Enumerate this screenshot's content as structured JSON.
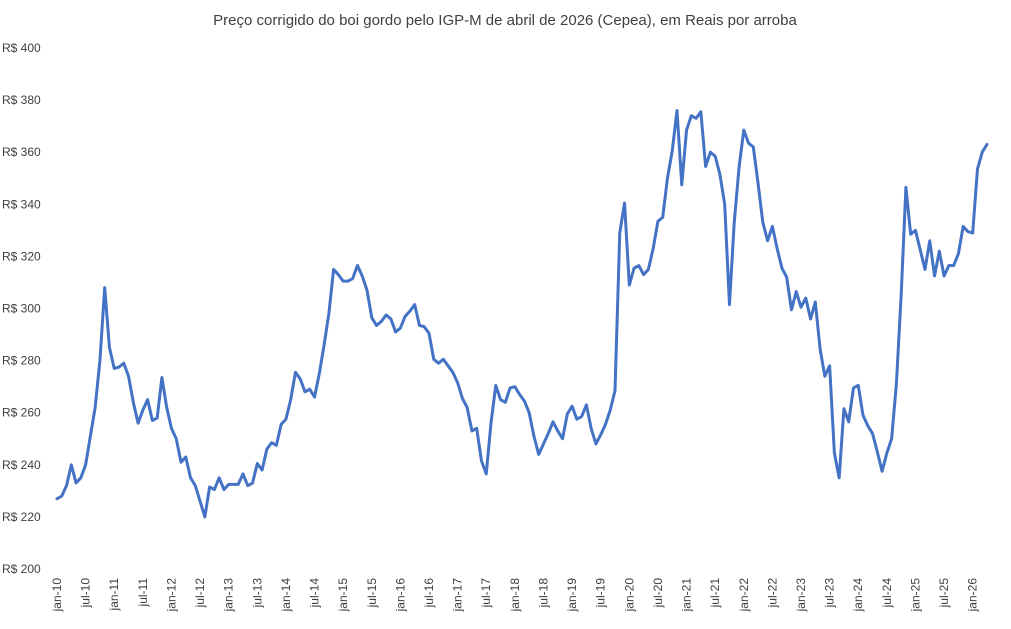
{
  "chart_data": {
    "type": "line",
    "title": "Preço corrigido do boi gordo pelo IGP-M de abril de 2026 (Cepea), em Reais por arroba",
    "xlabel": "",
    "ylabel": "",
    "ylim": [
      200,
      400
    ],
    "yticks": [
      200,
      220,
      240,
      260,
      280,
      300,
      320,
      340,
      360,
      380,
      400
    ],
    "ytick_prefix": "R$ ",
    "xticks": [
      "jan-10",
      "jul-10",
      "jan-11",
      "jul-11",
      "jan-12",
      "jul-12",
      "jan-13",
      "jul-13",
      "jan-14",
      "jul-14",
      "jan-15",
      "jul-15",
      "jan-16",
      "jul-16",
      "jan-17",
      "jul-17",
      "jan-18",
      "jul-18",
      "jan-19",
      "jul-19",
      "jan-20",
      "jul-20",
      "jan-21",
      "jul-21",
      "jan-22",
      "jul-22",
      "jan-23",
      "jul-23",
      "jan-24",
      "jul-24",
      "jan-25",
      "jul-25",
      "jan-26"
    ],
    "grid": false,
    "legend": "none",
    "line_color": "#4472C4",
    "x_start": "2010-01",
    "series": [
      {
        "values": [
          227,
          228,
          232,
          240,
          233,
          235,
          240,
          251,
          262,
          280,
          308,
          285,
          277,
          277.5,
          279,
          274,
          264,
          256,
          261,
          265,
          257,
          258,
          273.5,
          262,
          254,
          250,
          241,
          243,
          235,
          232,
          226,
          220,
          231.5,
          230.5,
          235,
          230.5,
          232.5,
          232.5,
          232.5,
          236.5,
          232,
          233,
          240.5,
          238,
          246,
          248.5,
          247.5,
          255.5,
          257.5,
          265,
          275.5,
          273,
          268,
          269,
          266,
          275,
          286,
          298,
          315,
          313,
          310.5,
          310.5,
          311.5,
          316.5,
          312.5,
          307,
          296.5,
          293.5,
          295,
          297.5,
          296,
          291,
          292.5,
          297,
          299,
          301.5,
          293.5,
          293,
          290.5,
          280.5,
          279,
          280.5,
          278,
          275.5,
          271.5,
          265.5,
          262,
          253,
          254,
          241.5,
          236.5,
          256,
          270.5,
          265,
          264,
          269.5,
          270,
          267,
          264.5,
          260,
          251,
          244,
          248,
          252,
          256.5,
          253,
          250,
          259.5,
          262.5,
          257.5,
          258.5,
          263,
          254,
          248,
          251.5,
          255.5,
          261,
          268.5,
          329,
          340.5,
          309,
          315.5,
          316.5,
          313,
          315,
          323,
          333.5,
          335,
          350,
          360.5,
          376,
          347.5,
          368.5,
          374,
          373,
          375.5,
          354.5,
          360,
          358.5,
          351.5,
          340,
          301.5,
          333,
          354,
          368.5,
          363.5,
          362,
          348,
          333,
          326,
          331.5,
          323,
          315.5,
          312,
          299.5,
          306.5,
          300.5,
          304,
          296,
          302.5,
          284.5,
          274,
          278,
          244.5,
          235,
          261.5,
          256.5,
          269.5,
          270.5,
          259,
          255,
          252,
          245,
          237.5,
          244.5,
          250,
          271,
          305,
          346.5,
          328.5,
          330,
          322.5,
          315,
          326,
          312.5,
          322,
          312.5,
          316.5,
          316.5,
          321,
          331.5,
          329.5,
          329,
          353.5,
          360,
          363
        ]
      }
    ]
  }
}
